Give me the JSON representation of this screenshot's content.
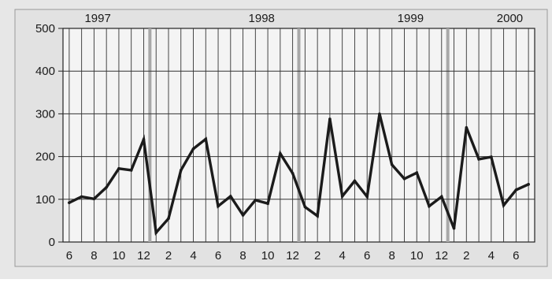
{
  "chart_data": {
    "type": "line",
    "title": "",
    "xlabel": "",
    "ylabel": "",
    "ylim": [
      0,
      500
    ],
    "y_ticks": [
      0,
      100,
      200,
      300,
      400,
      500
    ],
    "x_tick_labels": [
      "6",
      "8",
      "10",
      "12",
      "2",
      "4",
      "6",
      "8",
      "10",
      "12",
      "2",
      "4",
      "6",
      "8",
      "10",
      "12",
      "2",
      "4",
      "6"
    ],
    "year_labels": [
      "1997",
      "1998",
      "1999",
      "2000"
    ],
    "grid": true,
    "series": [
      {
        "values": [
          92,
          106,
          101,
          128,
          172,
          168,
          240,
          22,
          55,
          168,
          218,
          241,
          84,
          107,
          63,
          98,
          90,
          207,
          161,
          82,
          61,
          288,
          107,
          143,
          106,
          300,
          181,
          148,
          162,
          84,
          106,
          32,
          268,
          194,
          199,
          86,
          122,
          135
        ]
      }
    ],
    "colors": {
      "line": "#1b1b1b",
      "plot_background": "#f4f4f4",
      "page_background": "#e7e7e7",
      "grid": "#333333",
      "year_separator": "#a8a8a8"
    }
  }
}
